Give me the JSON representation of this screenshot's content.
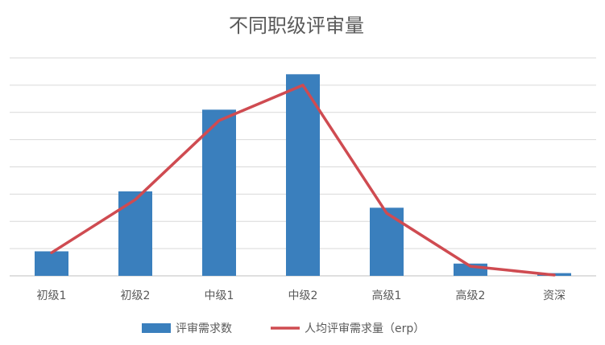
{
  "chart_data": {
    "type": "bar",
    "title": "不同职级评审量",
    "xlabel": "",
    "ylabel": "",
    "categories": [
      "初级1",
      "初级2",
      "中级1",
      "中级2",
      "高级1",
      "高级2",
      "资深"
    ],
    "series": [
      {
        "name": "评审需求数",
        "type": "bar",
        "color": "#3a7fbd",
        "values": [
          9,
          31,
          61,
          74,
          25,
          4.5,
          1
        ]
      },
      {
        "name": "人均评审需求量（erp）",
        "type": "line",
        "color": "#cf4b51",
        "values": [
          8.5,
          28,
          57,
          70,
          23,
          3.5,
          0.3
        ]
      }
    ],
    "ylim": [
      0,
      80
    ],
    "grid": true,
    "gridlines": 8,
    "show_y_ticks": false,
    "legend_position": "bottom"
  }
}
